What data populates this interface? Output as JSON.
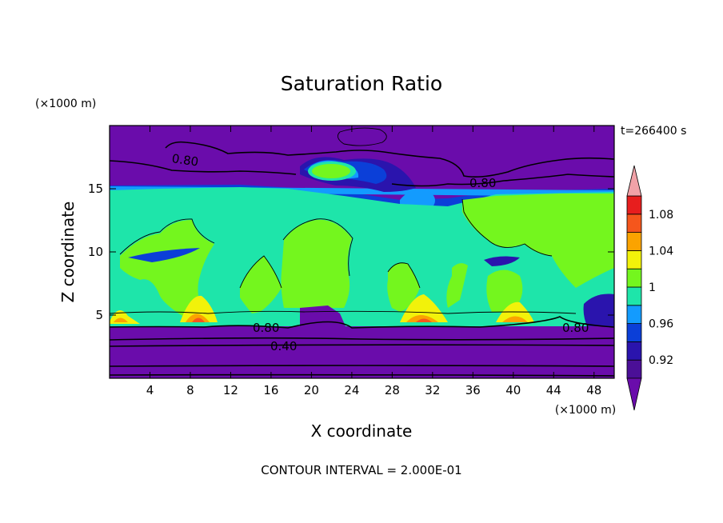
{
  "chart_data": {
    "type": "heatmap",
    "title": "Saturation Ratio",
    "xlabel": "X coordinate",
    "ylabel": "Z coordinate",
    "x_unit": "(×1000 m)",
    "y_unit": "(×1000 m)",
    "time_label": "t=266400 s",
    "footer": "CONTOUR INTERVAL = 2.000E-01",
    "xlim": [
      0,
      50
    ],
    "ylim": [
      0,
      20
    ],
    "x_ticks": [
      4,
      8,
      12,
      16,
      20,
      24,
      28,
      32,
      36,
      40,
      44,
      48
    ],
    "y_ticks": [
      5,
      10,
      15
    ],
    "colorbar": {
      "labels": [
        "1.08",
        "1.04",
        "1",
        "0.96",
        "0.92"
      ],
      "levels": [
        0.9,
        0.92,
        0.94,
        0.96,
        0.98,
        1.0,
        1.02,
        1.04,
        1.06,
        1.08,
        1.1
      ],
      "colors": [
        "#4b0f97",
        "#2a14ad",
        "#0b3fd8",
        "#139bfe",
        "#1ee5aa",
        "#74f61e",
        "#f2f20a",
        "#fba300",
        "#f5561c",
        "#e71e1e"
      ],
      "under_color": "#6a0cab",
      "over_color": "#f1a2a8"
    },
    "contour_labels": [
      "0.80",
      "0.80",
      "0.80",
      "0.80",
      "0.40"
    ]
  }
}
